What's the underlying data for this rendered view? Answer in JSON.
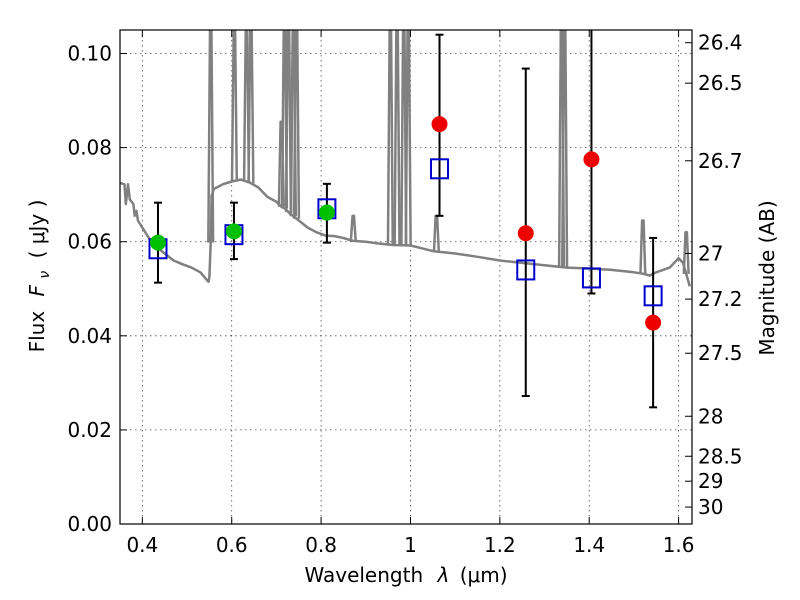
{
  "chart_data": {
    "type": "scatter",
    "xlabel_text": "Wavelength",
    "xlabel_symbol": "λ",
    "xlabel_unit": "(μm)",
    "ylabel_text": "Flux",
    "ylabel_symbol": "F",
    "ylabel_sub": "ν",
    "ylabel_unit": "( μJy )",
    "y2label": "Magnitude (AB)",
    "xlim": [
      0.35,
      1.63
    ],
    "ylim": [
      0.0,
      0.105
    ],
    "x_ticks": [
      0.4,
      0.6,
      0.8,
      1.0,
      1.2,
      1.4,
      1.6
    ],
    "x_tick_labels": [
      "0.4",
      "0.6",
      "0.8",
      "1",
      "1.2",
      "1.4",
      "1.6"
    ],
    "y_ticks": [
      0.0,
      0.02,
      0.04,
      0.06,
      0.08,
      0.1
    ],
    "y_tick_labels": [
      "0.00",
      "0.02",
      "0.04",
      "0.06",
      "0.08",
      "0.10"
    ],
    "y2_ticks": [
      {
        "flux": 0.1023,
        "label": "26.4"
      },
      {
        "flux": 0.0937,
        "label": "26.5"
      },
      {
        "flux": 0.0772,
        "label": "26.7"
      },
      {
        "flux": 0.0575,
        "label": "27"
      },
      {
        "flux": 0.0478,
        "label": "27.2"
      },
      {
        "flux": 0.0363,
        "label": "27.5"
      },
      {
        "flux": 0.0229,
        "label": "28"
      },
      {
        "flux": 0.0144,
        "label": "28.5"
      },
      {
        "flux": 0.0091,
        "label": "29"
      },
      {
        "flux": 0.0036,
        "label": "30"
      }
    ],
    "grid": true,
    "colors": {
      "model": "#808080",
      "green": "#00c000",
      "red": "#ee0000",
      "box": "#0000cc",
      "error": "#000000"
    },
    "model_spectrum": {
      "x": [
        0.35,
        0.36,
        0.363,
        0.366,
        0.368,
        0.372,
        0.38,
        0.383,
        0.387,
        0.39,
        0.4,
        0.41,
        0.42,
        0.43,
        0.45,
        0.47,
        0.49,
        0.51,
        0.53,
        0.545,
        0.548,
        0.55,
        0.553,
        0.555,
        0.558,
        0.56,
        0.58,
        0.6,
        0.62,
        0.64,
        0.66,
        0.68,
        0.7,
        0.71,
        0.72,
        0.73,
        0.75,
        0.77,
        0.79,
        0.81,
        0.83,
        0.85,
        0.86,
        0.87,
        0.9,
        0.93,
        0.96,
        1.0,
        1.03,
        1.05,
        1.1,
        1.15,
        1.2,
        1.25,
        1.3,
        1.35,
        1.4,
        1.45,
        1.5,
        1.52,
        1.535,
        1.55,
        1.58,
        1.6,
        1.61,
        1.625
      ],
      "y": [
        0.0725,
        0.0722,
        0.068,
        0.0705,
        0.0722,
        0.069,
        0.068,
        0.0655,
        0.0665,
        0.0645,
        0.063,
        0.0615,
        0.06,
        0.059,
        0.0575,
        0.056,
        0.0552,
        0.0545,
        0.0535,
        0.0518,
        0.0515,
        0.0525,
        0.0598,
        0.0698,
        0.0706,
        0.0712,
        0.0722,
        0.0728,
        0.0732,
        0.0726,
        0.0715,
        0.0695,
        0.0685,
        0.0675,
        0.067,
        0.066,
        0.0645,
        0.063,
        0.062,
        0.0613,
        0.0612,
        0.0608,
        0.0605,
        0.0602,
        0.06,
        0.0596,
        0.0593,
        0.0592,
        0.0585,
        0.058,
        0.0575,
        0.0568,
        0.056,
        0.0555,
        0.055,
        0.0545,
        0.0543,
        0.054,
        0.0535,
        0.0532,
        0.0528,
        0.0535,
        0.0545,
        0.0565,
        0.0555,
        0.0505
      ]
    },
    "model_lines": [
      {
        "x": 0.553,
        "peak": 0.105
      },
      {
        "x": 0.606,
        "peak": 0.105
      },
      {
        "x": 0.633,
        "peak": 0.105
      },
      {
        "x": 0.643,
        "peak": 0.105
      },
      {
        "x": 0.711,
        "peak": 0.0855
      },
      {
        "x": 0.718,
        "peak": 0.105
      },
      {
        "x": 0.727,
        "peak": 0.105
      },
      {
        "x": 0.738,
        "peak": 0.105
      },
      {
        "x": 0.745,
        "peak": 0.105
      },
      {
        "x": 0.872,
        "peak": 0.0655
      },
      {
        "x": 0.955,
        "peak": 0.105
      },
      {
        "x": 0.97,
        "peak": 0.105
      },
      {
        "x": 0.985,
        "peak": 0.105
      },
      {
        "x": 0.995,
        "peak": 0.105
      },
      {
        "x": 1.058,
        "peak": 0.0655
      },
      {
        "x": 1.338,
        "peak": 0.105
      },
      {
        "x": 1.345,
        "peak": 0.105
      },
      {
        "x": 1.52,
        "peak": 0.0645
      },
      {
        "x": 1.617,
        "peak": 0.062
      }
    ],
    "model_boxes": [
      {
        "x": 0.435,
        "y": 0.0585
      },
      {
        "x": 0.605,
        "y": 0.0615
      },
      {
        "x": 0.813,
        "y": 0.067
      },
      {
        "x": 1.065,
        "y": 0.0755
      },
      {
        "x": 1.258,
        "y": 0.054
      },
      {
        "x": 1.405,
        "y": 0.0523
      },
      {
        "x": 1.543,
        "y": 0.0485
      }
    ],
    "observed_points": [
      {
        "x": 0.435,
        "y": 0.0598,
        "yerr_low": 0.0513,
        "yerr_high": 0.0683,
        "color": "green"
      },
      {
        "x": 0.605,
        "y": 0.0622,
        "yerr_low": 0.0563,
        "yerr_high": 0.0683,
        "color": "green"
      },
      {
        "x": 0.813,
        "y": 0.0662,
        "yerr_low": 0.0598,
        "yerr_high": 0.0723,
        "color": "green"
      },
      {
        "x": 1.065,
        "y": 0.085,
        "yerr_low": 0.0655,
        "yerr_high": 0.104,
        "color": "red"
      },
      {
        "x": 1.258,
        "y": 0.0618,
        "yerr_low": 0.0272,
        "yerr_high": 0.0968,
        "color": "red"
      },
      {
        "x": 1.405,
        "y": 0.0775,
        "yerr_low": 0.049,
        "yerr_high": 0.108,
        "color": "red"
      },
      {
        "x": 1.543,
        "y": 0.0428,
        "yerr_low": 0.0248,
        "yerr_high": 0.0608,
        "color": "red"
      }
    ]
  }
}
